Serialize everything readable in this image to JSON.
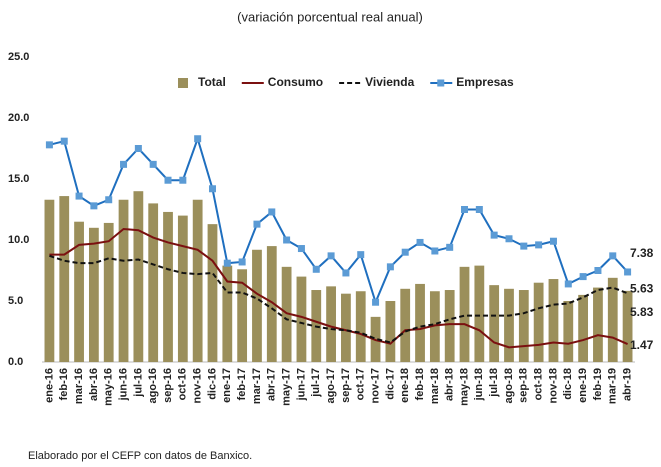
{
  "chart_data": {
    "type": "combo",
    "subtitle": "(variación porcentual real anual)",
    "source": "Elaborado por el CEFP con datos de Banxico.",
    "categories": [
      "ene-16",
      "feb-16",
      "mar-16",
      "abr-16",
      "may-16",
      "jun-16",
      "jul-16",
      "ago-16",
      "sep-16",
      "oct-16",
      "nov-16",
      "dic-16",
      "ene-17",
      "feb-17",
      "mar-17",
      "abr-17",
      "may-17",
      "jun-17",
      "jul-17",
      "ago-17",
      "sep-17",
      "oct-17",
      "nov-17",
      "dic-17",
      "ene-18",
      "feb-18",
      "mar-18",
      "abr-18",
      "may-18",
      "jun-18",
      "jul-18",
      "ago-18",
      "sep-18",
      "oct-18",
      "nov-18",
      "dic-18",
      "ene-19",
      "feb-19",
      "mar-19",
      "abr-19"
    ],
    "series": [
      {
        "name": "Total",
        "type": "bar",
        "color": "#9b8f5b",
        "label_color": "#8a7a2a",
        "values": [
          13.3,
          13.6,
          11.5,
          11.0,
          11.4,
          13.3,
          14.0,
          13.0,
          12.3,
          12.0,
          13.3,
          11.3,
          7.9,
          7.6,
          9.2,
          9.5,
          7.8,
          7.0,
          5.9,
          6.2,
          5.6,
          5.8,
          3.7,
          5.0,
          6.0,
          6.4,
          5.8,
          5.9,
          7.8,
          7.9,
          6.3,
          6.0,
          5.9,
          6.5,
          6.8,
          5.0,
          5.5,
          6.1,
          6.9,
          5.83
        ]
      },
      {
        "name": "Consumo",
        "type": "line",
        "color": "#7b1010",
        "label_color": "#8b1a1a",
        "values": [
          8.8,
          8.8,
          9.6,
          9.7,
          9.9,
          10.9,
          10.8,
          10.2,
          9.8,
          9.5,
          9.2,
          8.3,
          6.6,
          6.5,
          5.6,
          4.9,
          4.0,
          3.7,
          3.3,
          2.9,
          2.6,
          2.3,
          1.8,
          1.5,
          2.6,
          2.7,
          3.0,
          3.1,
          3.1,
          2.6,
          1.6,
          1.2,
          1.3,
          1.4,
          1.6,
          1.5,
          1.8,
          2.2,
          2.0,
          1.47
        ]
      },
      {
        "name": "Vivienda",
        "type": "line",
        "dash": true,
        "color": "#111111",
        "label_color": "#111111",
        "values": [
          8.7,
          8.3,
          8.1,
          8.1,
          8.5,
          8.3,
          8.4,
          8.0,
          7.6,
          7.3,
          7.2,
          7.3,
          5.7,
          5.7,
          5.2,
          4.4,
          3.5,
          3.2,
          2.9,
          2.7,
          2.6,
          2.4,
          1.9,
          1.6,
          2.5,
          2.9,
          3.1,
          3.5,
          3.8,
          3.8,
          3.8,
          3.8,
          4.0,
          4.4,
          4.7,
          4.8,
          5.3,
          5.9,
          6.1,
          5.63
        ]
      },
      {
        "name": "Empresas",
        "type": "line",
        "marker": true,
        "color": "#1f6fbf",
        "marker_color": "#5b9bd5",
        "label_color": "#1f3864",
        "values": [
          17.8,
          18.1,
          13.6,
          12.8,
          13.3,
          16.2,
          17.5,
          16.2,
          14.9,
          14.9,
          18.3,
          14.2,
          8.1,
          8.2,
          11.3,
          12.3,
          10.0,
          9.3,
          7.6,
          8.7,
          7.3,
          8.8,
          4.9,
          7.8,
          9.0,
          9.8,
          9.1,
          9.4,
          12.5,
          12.5,
          10.4,
          10.1,
          9.5,
          9.6,
          9.9,
          6.4,
          7.0,
          7.5,
          8.7,
          7.38
        ]
      }
    ],
    "ylim": [
      0,
      25
    ],
    "yticks": [
      {
        "value": 0,
        "label": "0.0"
      },
      {
        "value": 5,
        "label": "5.0"
      },
      {
        "value": 10,
        "label": "10.0"
      },
      {
        "value": 15,
        "label": "15.0"
      },
      {
        "value": 20,
        "label": "20.0"
      },
      {
        "value": 25,
        "label": "25.0"
      }
    ]
  }
}
